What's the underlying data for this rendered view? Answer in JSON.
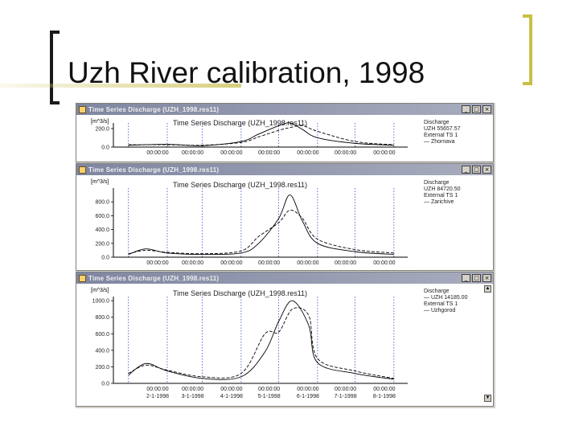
{
  "slide": {
    "title": "Uzh River calibration, 1998"
  },
  "windows": [
    {
      "title": "Time Series Discharge  (UZH_1998.res11)",
      "chart_title": "Time Series Discharge  (UZH_1998.res11)",
      "y_unit": "[m^3/s]",
      "y_ticks": [
        "200.0",
        "0.0"
      ],
      "x_ticks": [
        "00:00:00",
        "00:00:00",
        "00:00:00",
        "00:00:00",
        "00:00:00",
        "00:00:00",
        "00:00:00"
      ],
      "legend": [
        "Discharge",
        "UZH 55657.57",
        "External TS 1",
        "— Zhornava"
      ]
    },
    {
      "title": "Time Series Discharge  (UZH_1998.res11)",
      "chart_title": "Time Series Discharge  (UZH_1998.res11)",
      "y_unit": "[m^3/s]",
      "y_ticks": [
        "800.0",
        "600.0",
        "400.0",
        "200.0",
        "0.0"
      ],
      "x_ticks": [
        "00:00:00",
        "00:00:00",
        "00:00:00",
        "00:00:00",
        "00:00:00",
        "00:00:00",
        "00:00:00"
      ],
      "legend": [
        "Discharge",
        "UZH 84720.50",
        "External TS 1",
        "— Zarichive"
      ]
    },
    {
      "title": "Time Series Discharge  (UZH_1998.res11)",
      "chart_title": "Time Series Discharge  (UZH_1998.res11)",
      "y_unit": "[m^3/s]",
      "y_ticks": [
        "1000.0",
        "800.0",
        "600.0",
        "400.0",
        "200.0",
        "0.0"
      ],
      "x_ticks": [
        "00:00:00",
        "00:00:00",
        "00:00:00",
        "00:00:00",
        "00:00:00",
        "00:00:00",
        "00:00:00"
      ],
      "x_dates": [
        "2-1-1998",
        "3-1-1998",
        "4-1-1998",
        "5-1-1998",
        "6-1-1998",
        "7-1-1998",
        "8-1-1998"
      ],
      "legend": [
        "Discharge",
        "— UZH 14185.00",
        "External TS 1",
        "— Uzhgorod"
      ]
    }
  ],
  "window_buttons": {
    "minimize": "_",
    "maximize": "□",
    "close": "×"
  },
  "colors": {
    "titlebar": "#7f86a0",
    "grid": "#3050c8",
    "series": "#000000",
    "bracket_accent": "#c8c044"
  },
  "chart_data": [
    {
      "type": "line",
      "x": [
        "1-1-1998",
        "2-1-1998",
        "3-1-1998",
        "4-1-1998",
        "4-15-1998",
        "5-1-1998",
        "5-10-1998",
        "5-20-1998",
        "6-1-1998",
        "7-1-1998",
        "8-1-1998"
      ],
      "series": [
        {
          "values": [
            20,
            30,
            15,
            60,
            140,
            230,
            260,
            190,
            100,
            40,
            20
          ]
        },
        {
          "values": [
            25,
            25,
            20,
            50,
            110,
            180,
            210,
            230,
            170,
            60,
            25
          ]
        }
      ],
      "ylim": [
        0,
        260
      ]
    },
    {
      "type": "line",
      "x": [
        "1-1-1998",
        "1-15-1998",
        "2-1-1998",
        "3-1-1998",
        "4-1-1998",
        "4-15-1998",
        "5-1-1998",
        "5-10-1998",
        "5-20-1998",
        "6-1-1998",
        "7-1-1998",
        "8-1-1998"
      ],
      "series": [
        {
          "values": [
            40,
            120,
            60,
            40,
            60,
            200,
            560,
            900,
            520,
            200,
            80,
            40
          ]
        },
        {
          "values": [
            50,
            100,
            70,
            50,
            90,
            300,
            500,
            680,
            560,
            260,
            110,
            60
          ]
        }
      ],
      "ylim": [
        0,
        1000
      ]
    },
    {
      "type": "line",
      "x": [
        "1-1-1998",
        "1-15-1998",
        "2-1-1998",
        "3-1-1998",
        "4-1-1998",
        "4-20-1998",
        "5-1-1998",
        "5-12-1998",
        "5-25-1998",
        "6-1-1998",
        "7-1-1998",
        "8-1-1998"
      ],
      "series": [
        {
          "values": [
            100,
            240,
            150,
            60,
            80,
            380,
            750,
            1000,
            700,
            250,
            120,
            50
          ]
        },
        {
          "values": [
            120,
            220,
            160,
            80,
            120,
            600,
            620,
            900,
            820,
            300,
            150,
            60
          ]
        }
      ],
      "ylim": [
        0,
        1050
      ]
    }
  ]
}
